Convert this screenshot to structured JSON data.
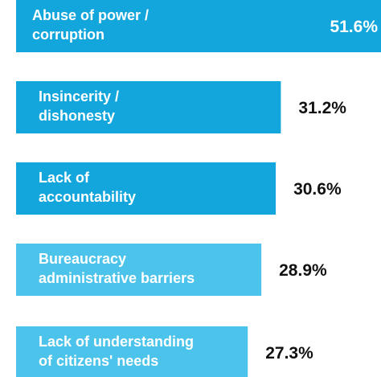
{
  "chart_data": {
    "type": "hbar",
    "categories": [
      [
        "Abuse of power /",
        "corruption"
      ],
      [
        "Insincerity /",
        "dishonesty"
      ],
      [
        "Lack of",
        "accountability"
      ],
      [
        "Bureaucracy",
        "administrative barriers"
      ],
      [
        "Lack of understanding",
        "of citizens' needs"
      ]
    ],
    "values": [
      51.6,
      31.2,
      30.6,
      28.9,
      27.3
    ],
    "value_labels": [
      "51.6%",
      "31.2%",
      "30.6%",
      "28.9%",
      "27.3%"
    ],
    "colors": [
      "#12a6dc",
      "#12a6dc",
      "#12a6dc",
      "#4cc3ea",
      "#4cc3ea"
    ],
    "xlim": [
      0,
      43
    ]
  }
}
